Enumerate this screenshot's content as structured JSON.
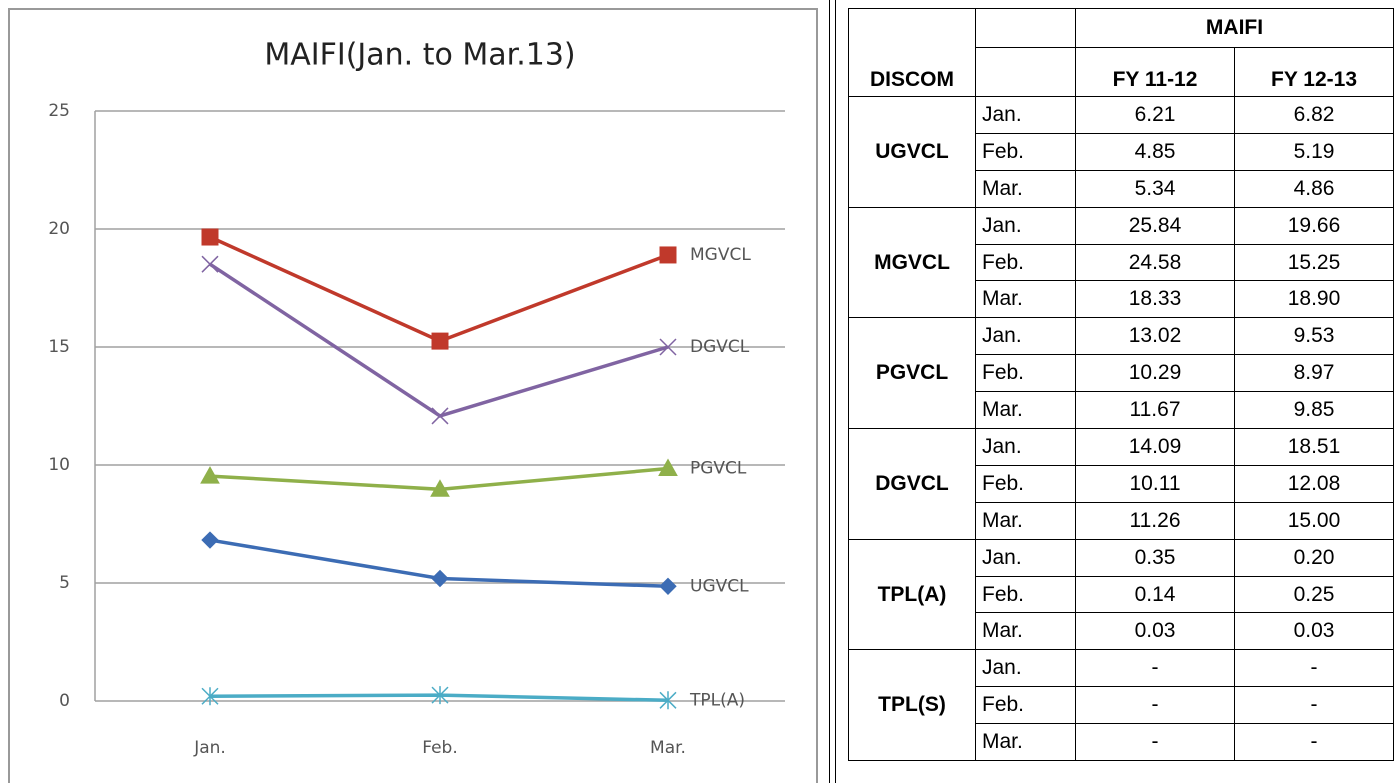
{
  "chart_data": {
    "type": "line",
    "title": "MAIFI(Jan. to Mar.13)",
    "categories": [
      "Jan.",
      "Feb.",
      "Mar."
    ],
    "ylim": [
      0,
      25
    ],
    "yticks": [
      0,
      5,
      10,
      15,
      20,
      25
    ],
    "grid": true,
    "series": [
      {
        "name": "MGVCL",
        "color": "#c0392b",
        "marker": "square",
        "values": [
          19.66,
          15.25,
          18.9
        ]
      },
      {
        "name": "DGVCL",
        "color": "#8064a2",
        "marker": "x",
        "values": [
          18.51,
          12.08,
          15.0
        ]
      },
      {
        "name": "PGVCL",
        "color": "#8fb04a",
        "marker": "triangle",
        "values": [
          9.53,
          8.97,
          9.85
        ]
      },
      {
        "name": "UGVCL",
        "color": "#3c6cb4",
        "marker": "diamond",
        "values": [
          6.82,
          5.19,
          4.86
        ]
      },
      {
        "name": "TPL(A)",
        "color": "#4bacc6",
        "marker": "asterisk",
        "values": [
          0.2,
          0.25,
          0.03
        ]
      }
    ]
  },
  "table": {
    "header": "MAIFI",
    "columns": [
      "DISCOM",
      "FY 11-12",
      "FY 12-13"
    ],
    "groups": [
      {
        "name": "UGVCL",
        "rows": [
          {
            "month": "Jan.",
            "values": [
              "6.21",
              "6.82"
            ]
          },
          {
            "month": "Feb.",
            "values": [
              "4.85",
              "5.19"
            ]
          },
          {
            "month": "Mar.",
            "values": [
              "5.34",
              "4.86"
            ]
          }
        ]
      },
      {
        "name": "MGVCL",
        "rows": [
          {
            "month": "Jan.",
            "values": [
              "25.84",
              "19.66"
            ]
          },
          {
            "month": "Feb.",
            "values": [
              "24.58",
              "15.25"
            ]
          },
          {
            "month": "Mar.",
            "values": [
              "18.33",
              "18.90"
            ]
          }
        ]
      },
      {
        "name": "PGVCL",
        "rows": [
          {
            "month": "Jan.",
            "values": [
              "13.02",
              "9.53"
            ]
          },
          {
            "month": "Feb.",
            "values": [
              "10.29",
              "8.97"
            ]
          },
          {
            "month": "Mar.",
            "values": [
              "11.67",
              "9.85"
            ]
          }
        ]
      },
      {
        "name": "DGVCL",
        "rows": [
          {
            "month": "Jan.",
            "values": [
              "14.09",
              "18.51"
            ]
          },
          {
            "month": "Feb.",
            "values": [
              "10.11",
              "12.08"
            ]
          },
          {
            "month": "Mar.",
            "values": [
              "11.26",
              "15.00"
            ]
          }
        ]
      },
      {
        "name": "TPL(A)",
        "rows": [
          {
            "month": "Jan.",
            "values": [
              "0.35",
              "0.20"
            ]
          },
          {
            "month": "Feb.",
            "values": [
              "0.14",
              "0.25"
            ]
          },
          {
            "month": "Mar.",
            "values": [
              "0.03",
              "0.03"
            ]
          }
        ]
      },
      {
        "name": "TPL(S)",
        "rows": [
          {
            "month": "Jan.",
            "values": [
              "-",
              "-"
            ]
          },
          {
            "month": "Feb.",
            "values": [
              "-",
              "-"
            ]
          },
          {
            "month": "Mar.",
            "values": [
              "-",
              "-"
            ]
          }
        ]
      }
    ]
  }
}
